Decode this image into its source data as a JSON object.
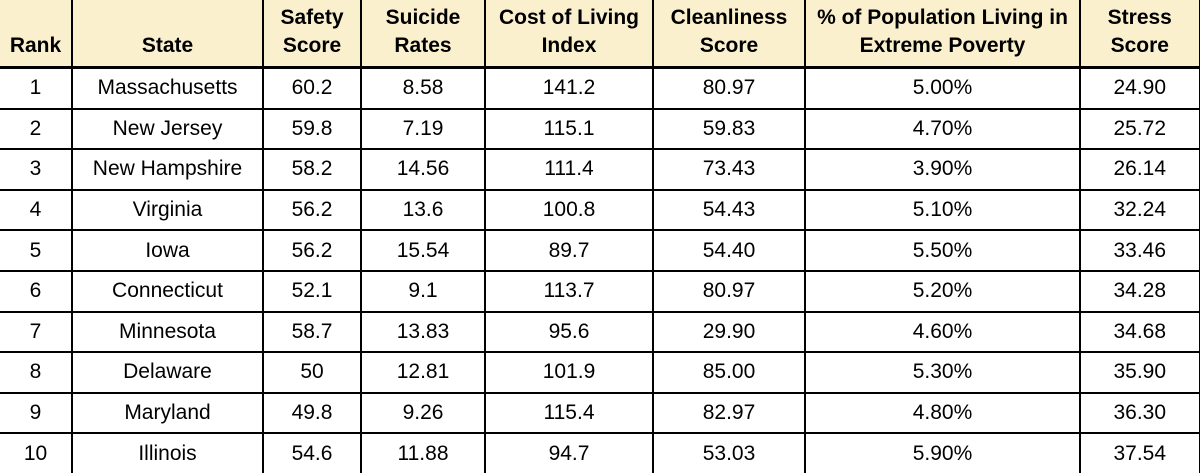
{
  "colors": {
    "header_bg": "#FAF0CE",
    "border": "#000000",
    "text": "#000000",
    "row_bg": "#FFFFFF"
  },
  "chart_data": {
    "type": "table",
    "title": "",
    "columns": [
      {
        "key": "rank",
        "label": "Rank"
      },
      {
        "key": "state",
        "label": "State"
      },
      {
        "key": "safety_score",
        "label": "Safety Score"
      },
      {
        "key": "suicide_rates",
        "label": "Suicide Rates"
      },
      {
        "key": "cost_of_living_index",
        "label": "Cost of Living Index"
      },
      {
        "key": "cleanliness_score",
        "label": "Cleanliness Score"
      },
      {
        "key": "poverty_pct",
        "label": "% of Population Living in Extreme Poverty"
      },
      {
        "key": "stress_score",
        "label": "Stress Score"
      }
    ],
    "rows": [
      [
        "1",
        "Massachusetts",
        "60.2",
        "8.58",
        "141.2",
        "80.97",
        "5.00%",
        "24.90"
      ],
      [
        "2",
        "New Jersey",
        "59.8",
        "7.19",
        "115.1",
        "59.83",
        "4.70%",
        "25.72"
      ],
      [
        "3",
        "New Hampshire",
        "58.2",
        "14.56",
        "111.4",
        "73.43",
        "3.90%",
        "26.14"
      ],
      [
        "4",
        "Virginia",
        "56.2",
        "13.6",
        "100.8",
        "54.43",
        "5.10%",
        "32.24"
      ],
      [
        "5",
        "Iowa",
        "56.2",
        "15.54",
        "89.7",
        "54.40",
        "5.50%",
        "33.46"
      ],
      [
        "6",
        "Connecticut",
        "52.1",
        "9.1",
        "113.7",
        "80.97",
        "5.20%",
        "34.28"
      ],
      [
        "7",
        "Minnesota",
        "58.7",
        "13.83",
        "95.6",
        "29.90",
        "4.60%",
        "34.68"
      ],
      [
        "8",
        "Delaware",
        "50",
        "12.81",
        "101.9",
        "85.00",
        "5.30%",
        "35.90"
      ],
      [
        "9",
        "Maryland",
        "49.8",
        "9.26",
        "115.4",
        "82.97",
        "4.80%",
        "36.30"
      ],
      [
        "10",
        "Illinois",
        "54.6",
        "11.88",
        "94.7",
        "53.03",
        "5.90%",
        "37.54"
      ]
    ]
  }
}
